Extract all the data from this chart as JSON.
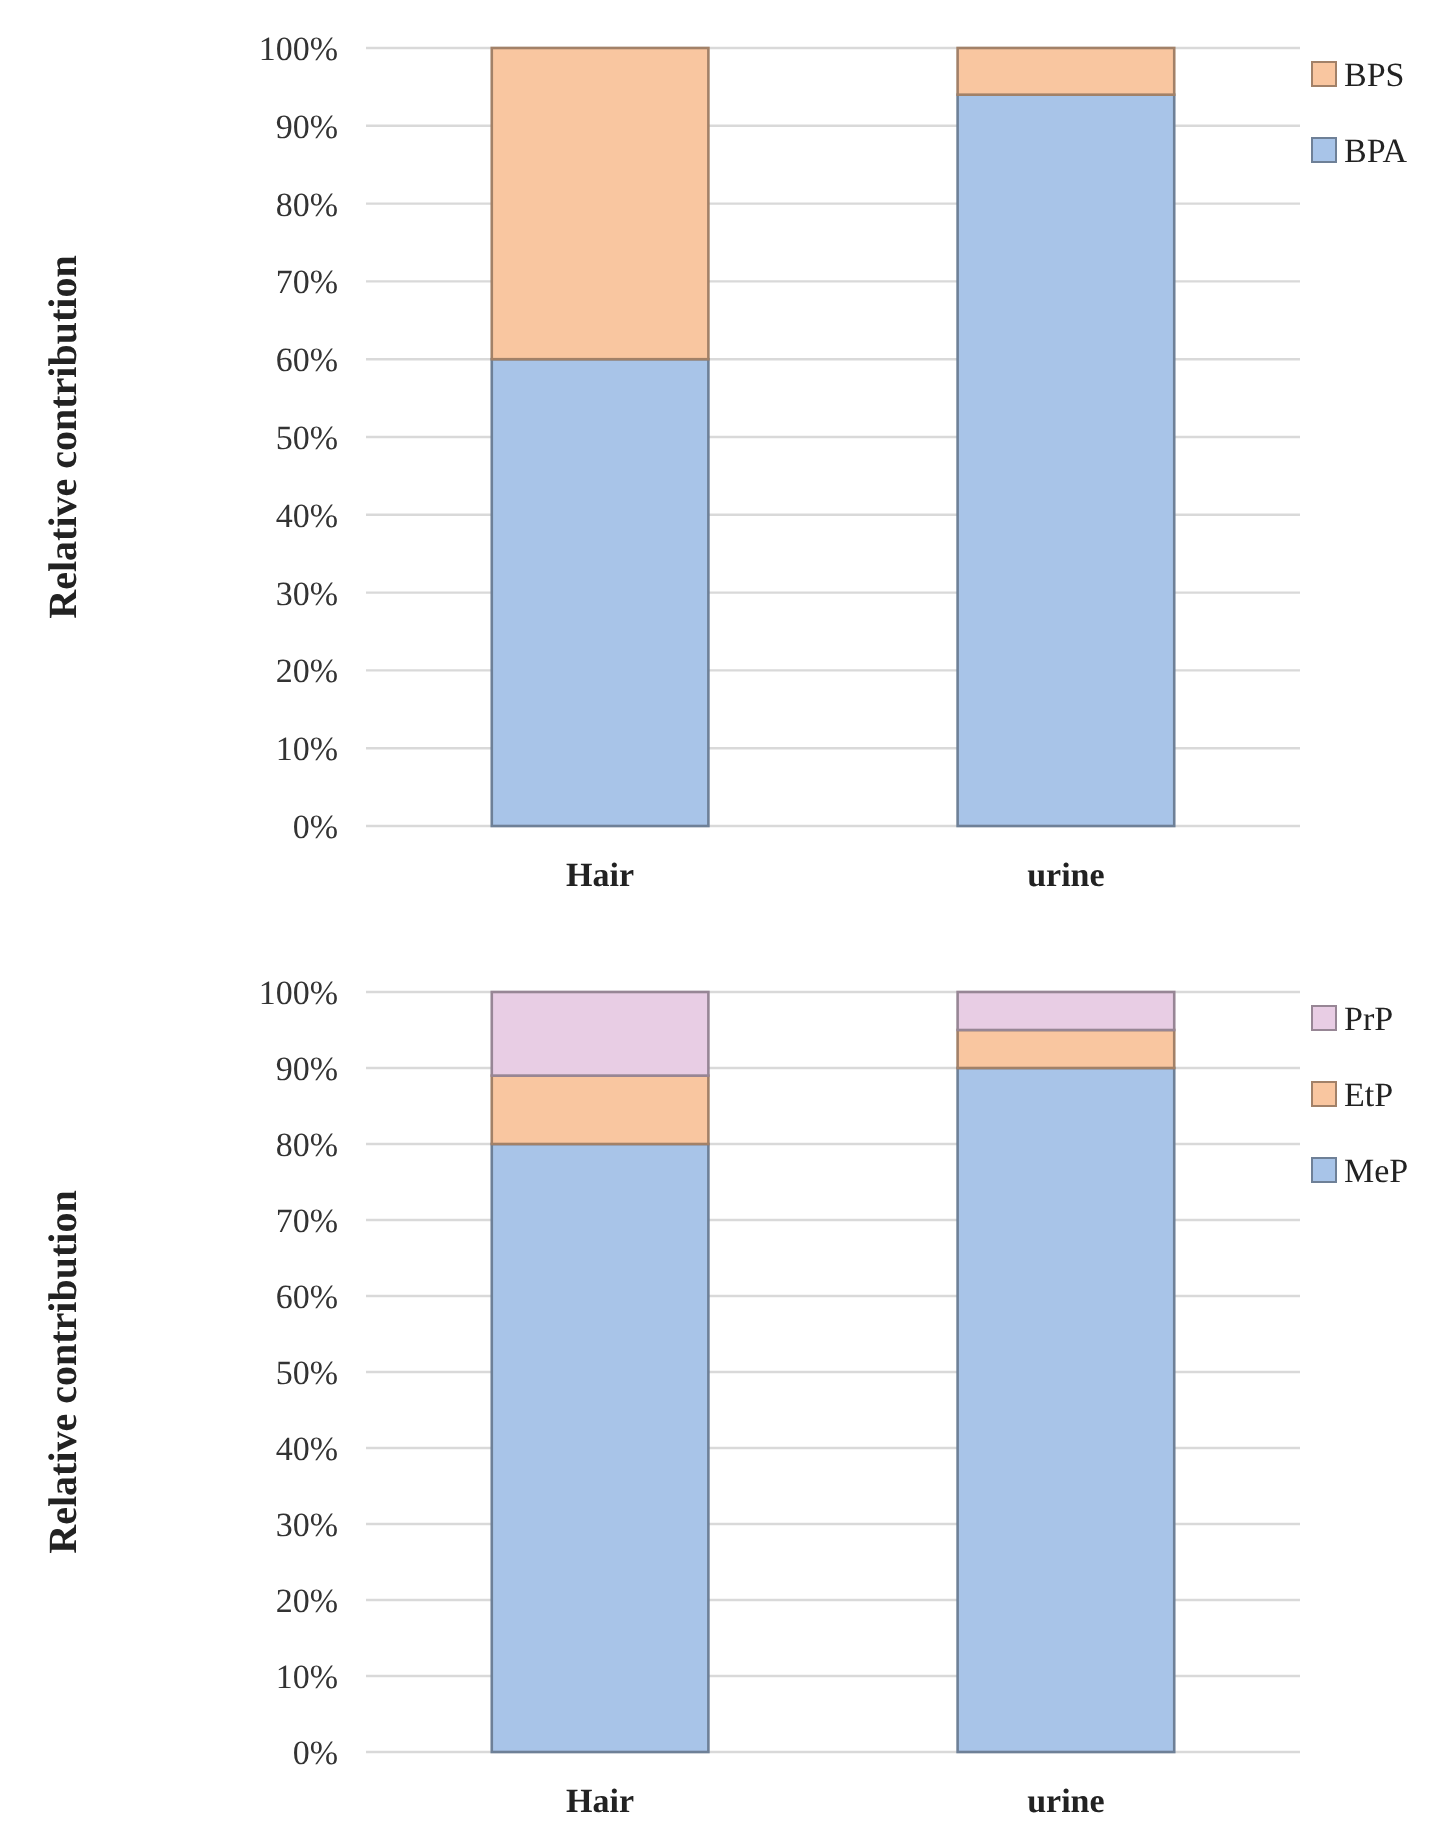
{
  "chart_data": [
    {
      "type": "bar",
      "stacked": true,
      "categories": [
        "Hair",
        "urine"
      ],
      "ylabel": "Relative contribution",
      "ylim": [
        0,
        100
      ],
      "yticks": [
        {
          "value": 0,
          "label": "0%"
        },
        {
          "value": 10,
          "label": "10%"
        },
        {
          "value": 20,
          "label": "20%"
        },
        {
          "value": 30,
          "label": "30%"
        },
        {
          "value": 40,
          "label": "40%"
        },
        {
          "value": 50,
          "label": "50%"
        },
        {
          "value": 60,
          "label": "60%"
        },
        {
          "value": 70,
          "label": "70%"
        },
        {
          "value": 80,
          "label": "80%"
        },
        {
          "value": 90,
          "label": "90%"
        },
        {
          "value": 100,
          "label": "100%"
        }
      ],
      "grid": "y",
      "legend": "right",
      "series": [
        {
          "name": "BPA",
          "color": "#a8c4e8",
          "values": [
            60,
            94
          ]
        },
        {
          "name": "BPS",
          "color": "#f9c6a0",
          "values": [
            40,
            6
          ]
        }
      ]
    },
    {
      "type": "bar",
      "stacked": true,
      "categories": [
        "Hair",
        "urine"
      ],
      "ylabel": "Relative contribution",
      "ylim": [
        0,
        100
      ],
      "yticks": [
        {
          "value": 0,
          "label": "0%"
        },
        {
          "value": 10,
          "label": "10%"
        },
        {
          "value": 20,
          "label": "20%"
        },
        {
          "value": 30,
          "label": "30%"
        },
        {
          "value": 40,
          "label": "40%"
        },
        {
          "value": 50,
          "label": "50%"
        },
        {
          "value": 60,
          "label": "60%"
        },
        {
          "value": 70,
          "label": "70%"
        },
        {
          "value": 80,
          "label": "80%"
        },
        {
          "value": 90,
          "label": "90%"
        },
        {
          "value": 100,
          "label": "100%"
        }
      ],
      "grid": "y",
      "legend": "right",
      "series": [
        {
          "name": "MeP",
          "color": "#a8c4e8",
          "values": [
            80,
            90
          ]
        },
        {
          "name": "EtP",
          "color": "#f9c6a0",
          "values": [
            9,
            5
          ]
        },
        {
          "name": "PrP",
          "color": "#e8cde4",
          "values": [
            11,
            5
          ]
        }
      ]
    }
  ]
}
